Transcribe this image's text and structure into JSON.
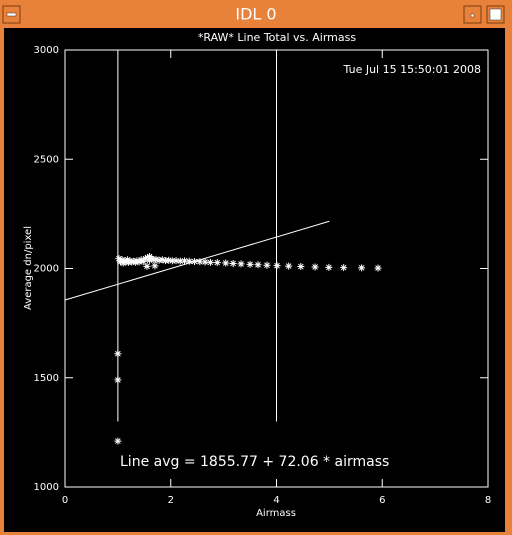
{
  "window": {
    "title": "IDL 0"
  },
  "chart_data": {
    "type": "scatter",
    "title": "*RAW* Line Total vs. Airmass",
    "subtitle": "Tue Jul 15 15:50:01 2008",
    "xlabel": "Airmass",
    "ylabel": "Average dn/pixel",
    "annotation": "Line avg = 1855.77 + 72.06 * airmass",
    "xlim": [
      0,
      8
    ],
    "xticks": [
      0,
      2,
      4,
      6,
      8
    ],
    "ylim": [
      1000,
      3000
    ],
    "yticks": [
      1000,
      1500,
      2000,
      2500,
      3000
    ],
    "color": "#ffffff",
    "vlines": [
      1,
      4
    ],
    "vline_range": [
      1300,
      3000
    ],
    "series": [
      {
        "x": [
          1.0,
          1.0,
          1.0,
          1.02,
          1.05,
          1.08,
          1.1,
          1.12,
          1.15,
          1.18,
          1.2,
          1.23,
          1.26,
          1.3,
          1.33,
          1.36,
          1.4,
          1.44,
          1.48,
          1.52,
          1.56,
          1.6,
          1.6,
          1.64,
          1.68,
          1.72,
          1.78,
          1.84,
          1.9,
          1.96,
          2.03,
          2.1,
          2.18,
          2.26,
          2.35,
          2.45,
          2.55,
          2.65,
          2.75,
          2.88,
          3.04,
          3.18,
          3.33,
          3.5,
          3.65,
          3.82,
          4.01,
          4.23,
          4.46,
          4.73,
          4.99,
          5.27,
          5.61,
          5.92,
          1.55,
          1.7
        ],
        "values": [
          1610,
          1490,
          1210,
          2045,
          2030,
          2040,
          2025,
          2035,
          2030,
          2040,
          2028,
          2035,
          2030,
          2033,
          2028,
          2035,
          2030,
          2040,
          2032,
          2045,
          2050,
          2055,
          2038,
          2045,
          2040,
          2042,
          2038,
          2040,
          2036,
          2038,
          2035,
          2036,
          2034,
          2035,
          2033,
          2032,
          2031,
          2030,
          2028,
          2027,
          2025,
          2023,
          2021,
          2019,
          2017,
          2015,
          2013,
          2011,
          2009,
          2007,
          2005,
          2004,
          2003,
          2002,
          2010,
          2012
        ]
      },
      {
        "type": "line",
        "x": [
          0,
          5
        ],
        "values": [
          1855.77,
          2216.07
        ]
      }
    ]
  }
}
